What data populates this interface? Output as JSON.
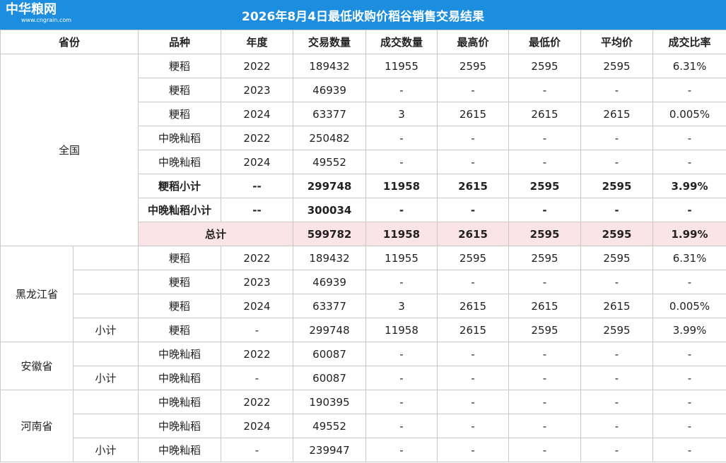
{
  "logo": "中华粮网",
  "logo_url": "www.cngrain.com",
  "title": "2026年8月4日最低收购价稻谷销售交易结果",
  "header": [
    "省份",
    "品种",
    "年度",
    "交易数量",
    "成交数量",
    "最高价",
    "最低价",
    "平均价",
    "成交比率"
  ],
  "sections": [
    {
      "province": "全国",
      "rows": [
        [
          "粳稻",
          "2022",
          "189432",
          "11955",
          "2595",
          "2595",
          "2595",
          "6.31%"
        ],
        [
          "粳稻",
          "2023",
          "46939",
          "-",
          "-",
          "-",
          "-",
          "-"
        ],
        [
          "粳稻",
          "2024",
          "63377",
          "3",
          "2615",
          "2615",
          "2615",
          "0.005%"
        ],
        [
          "中晚籼稻",
          "2022",
          "250482",
          "-",
          "-",
          "-",
          "-",
          "-"
        ],
        [
          "中晚籼稻",
          "2024",
          "49552",
          "-",
          "-",
          "-",
          "-",
          "-"
        ],
        [
          "粳稻小计",
          "--",
          "299748",
          "11958",
          "2615",
          "2595",
          "2595",
          "3.99%"
        ],
        [
          "中晚籼稻小计",
          "--",
          "300034",
          "-",
          "-",
          "-",
          "-",
          "-"
        ],
        [
          "总计",
          "599782",
          "11958",
          "2615",
          "2595",
          "2595",
          "1.99%"
        ]
      ]
    },
    {
      "province": "黑龙江省",
      "rows": [
        [
          null,
          "粳稻",
          "2022",
          "189432",
          "11955",
          "2595",
          "2595",
          "2595",
          "6.31%"
        ],
        [
          null,
          "粳稻",
          "2023",
          "46939",
          "-",
          "-",
          "-",
          "-",
          "-"
        ],
        [
          null,
          "粳稻",
          "2024",
          "63377",
          "3",
          "2615",
          "2615",
          "2615",
          "0.005%"
        ],
        [
          "小计",
          "粳稻",
          "-",
          "299748",
          "11958",
          "2615",
          "2595",
          "2595",
          "3.99%"
        ]
      ]
    },
    {
      "province": "安徽省",
      "rows": [
        [
          null,
          "中晚籼稻",
          "2022",
          "60087",
          "-",
          "-",
          "-",
          "-",
          "-"
        ],
        [
          "小计",
          "中晚籼稻",
          "-",
          "60087",
          "-",
          "-",
          "-",
          "-",
          "-"
        ]
      ]
    },
    {
      "province": "河南省",
      "rows": [
        [
          null,
          "中晚籼稻",
          "2022",
          "190395",
          "-",
          "-",
          "-",
          "-",
          "-"
        ],
        [
          null,
          "中晚籼稻",
          "2024",
          "49552",
          "-",
          "-",
          "-",
          "-",
          "-"
        ],
        [
          "小计",
          "中晚籼稻",
          "-",
          "239947",
          "-",
          "-",
          "-",
          "-",
          "-"
        ]
      ]
    }
  ]
}
